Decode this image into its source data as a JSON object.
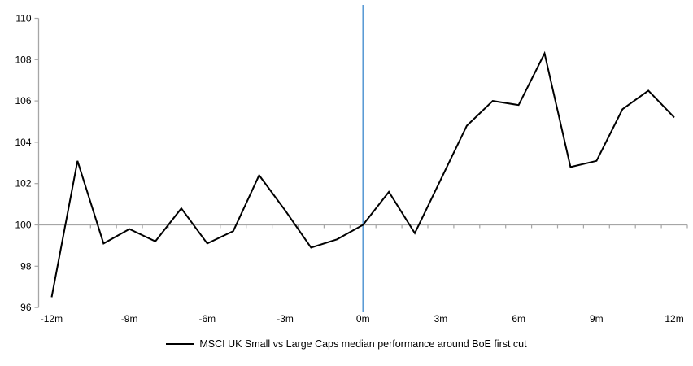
{
  "chart_data": {
    "type": "line",
    "title": "",
    "xlabel": "",
    "ylabel": "",
    "x": [
      -12,
      -11,
      -10,
      -9,
      -8,
      -7,
      -6,
      -5,
      -4,
      -3,
      -2,
      -1,
      0,
      1,
      2,
      3,
      4,
      5,
      6,
      7,
      8,
      9,
      10,
      11,
      12
    ],
    "x_tick_labels": [
      "-12m",
      "-9m",
      "-6m",
      "-3m",
      "0m",
      "3m",
      "6m",
      "9m",
      "12m"
    ],
    "x_tick_values": [
      -12,
      -9,
      -6,
      -3,
      0,
      3,
      6,
      9,
      12
    ],
    "y_tick_labels": [
      "96",
      "98",
      "100",
      "102",
      "104",
      "106",
      "108",
      "110"
    ],
    "y_tick_values": [
      96,
      98,
      100,
      102,
      104,
      106,
      108,
      110
    ],
    "ylim": [
      96,
      110
    ],
    "grid": false,
    "legend_position": "bottom",
    "series": [
      {
        "name": "MSCI UK Small vs Large Caps median performance around BoE first cut",
        "color": "#000000",
        "values": [
          96.5,
          103.1,
          99.1,
          99.8,
          99.2,
          100.8,
          99.1,
          99.7,
          102.4,
          100.7,
          98.9,
          99.3,
          100.0,
          101.6,
          99.6,
          102.2,
          104.8,
          106.0,
          105.8,
          108.3,
          102.8,
          103.1,
          105.6,
          106.5,
          105.2
        ]
      }
    ],
    "reference_lines": {
      "vertical_at_x": 0,
      "vertical_color": "#5B9BD5",
      "horizontal_at_y": 100,
      "horizontal_color": "#A6A6A6"
    },
    "axis_color": "#A6A6A6"
  }
}
